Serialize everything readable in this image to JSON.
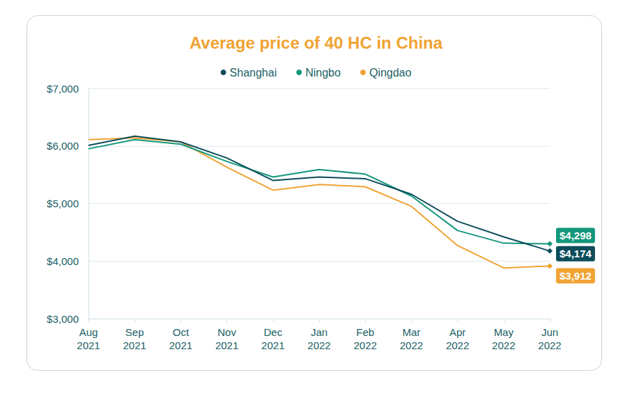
{
  "chart_data": {
    "type": "line",
    "title": "Average price of 40 HC in China",
    "categories": [
      "Aug\n2021",
      "Sep\n2021",
      "Oct\n2021",
      "Nov\n2021",
      "Dec\n2021",
      "Jan\n2022",
      "Feb\n2022",
      "Mar\n2022",
      "Apr\n2022",
      "May\n2022",
      "Jun\n2022"
    ],
    "series": [
      {
        "name": "Shanghai",
        "color": "#0d4d5b",
        "values": [
          6010,
          6170,
          6070,
          5790,
          5400,
          5460,
          5430,
          5160,
          4690,
          4420,
          4174
        ],
        "value_labels": [
          null,
          null,
          null,
          null,
          null,
          null,
          null,
          null,
          null,
          null,
          "$4,174"
        ]
      },
      {
        "name": "Ningbo",
        "color": "#14977b",
        "values": [
          5950,
          6110,
          6030,
          5730,
          5460,
          5590,
          5510,
          5130,
          4530,
          4310,
          4298
        ],
        "value_labels": [
          null,
          null,
          null,
          null,
          null,
          null,
          null,
          null,
          null,
          null,
          "$4,298"
        ]
      },
      {
        "name": "Qingdao",
        "color": "#f0a333",
        "values": [
          6110,
          6140,
          6070,
          5630,
          5230,
          5330,
          5290,
          4950,
          4270,
          3880,
          3912
        ],
        "value_labels": [
          null,
          null,
          null,
          null,
          null,
          null,
          null,
          null,
          null,
          null,
          "$3,912"
        ]
      }
    ],
    "ylim": [
      3000,
      7000
    ],
    "yticks": [
      {
        "value": 3000,
        "label": "$3,000"
      },
      {
        "value": 4000,
        "label": "$4,000"
      },
      {
        "value": 5000,
        "label": "$5,000"
      },
      {
        "value": 6000,
        "label": "$6,000"
      },
      {
        "value": 7000,
        "label": "$7,000"
      }
    ],
    "grid": true,
    "legend": "top"
  }
}
